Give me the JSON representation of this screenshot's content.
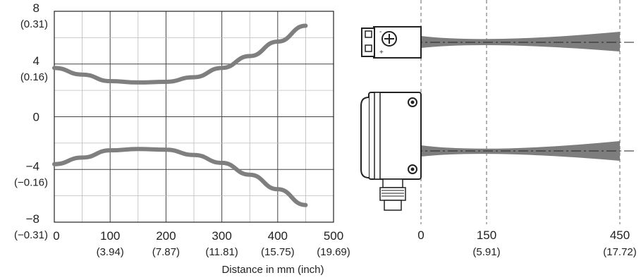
{
  "chart_data": {
    "type": "line",
    "title": "",
    "xlabel": "Distance in mm (inch)",
    "ylabel": "",
    "xlim": [
      0,
      500
    ],
    "ylim": [
      -8,
      8
    ],
    "grid": true,
    "x_ticks": [
      {
        "value": 0,
        "label": "0",
        "sub": ""
      },
      {
        "value": 100,
        "label": "100",
        "sub": "(3.94)"
      },
      {
        "value": 200,
        "label": "200",
        "sub": "(7.87)"
      },
      {
        "value": 300,
        "label": "300",
        "sub": "(11.81)"
      },
      {
        "value": 400,
        "label": "400",
        "sub": "(15.75)"
      },
      {
        "value": 500,
        "label": "500",
        "sub": "(19.69)"
      }
    ],
    "y_ticks": [
      {
        "value": 8,
        "label": "8",
        "sub": "(0.31)"
      },
      {
        "value": 4,
        "label": "4",
        "sub": "(0.16)"
      },
      {
        "value": 0,
        "label": "0",
        "sub": ""
      },
      {
        "value": -4,
        "label": "-4",
        "sub": "(-0.16)"
      },
      {
        "value": -8,
        "label": "-8",
        "sub": "(-0.31)"
      }
    ],
    "series": [
      {
        "x": [
          0,
          50,
          100,
          150,
          200,
          250,
          300,
          350,
          400,
          450
        ],
        "values": [
          3.7,
          3.2,
          2.7,
          2.6,
          2.65,
          3.0,
          3.7,
          4.6,
          5.7,
          6.9
        ]
      },
      {
        "x": [
          0,
          50,
          100,
          150,
          200,
          250,
          300,
          350,
          400,
          450
        ],
        "values": [
          -3.6,
          -3.1,
          -2.55,
          -2.45,
          -2.5,
          -2.9,
          -3.5,
          -4.4,
          -5.5,
          -6.7
        ]
      }
    ],
    "series_color": "#7f7f7f",
    "diagram": {
      "distances": [
        {
          "value": "0",
          "sub": ""
        },
        {
          "value": "150",
          "sub": "(5.91)"
        },
        {
          "value": "450",
          "sub": "(17.72)"
        }
      ]
    }
  }
}
